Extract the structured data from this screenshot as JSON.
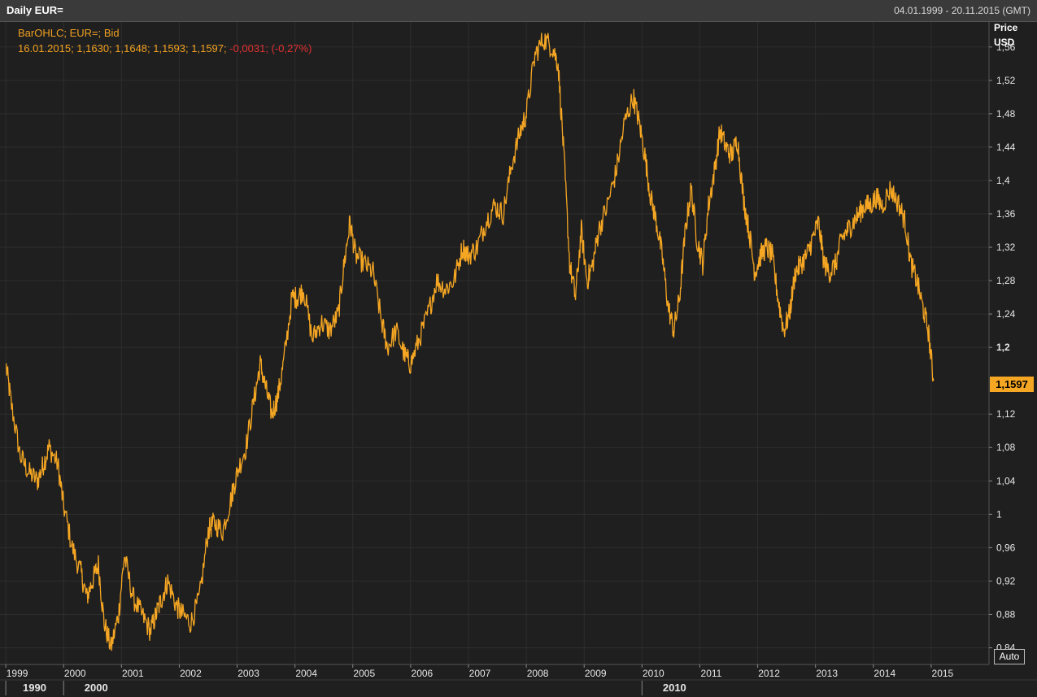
{
  "window": {
    "title": "Daily EUR=",
    "date_range": "04.01.1999 - 20.11.2015 (GMT)"
  },
  "info": {
    "line1": "BarOHLC; EUR=; Bid",
    "line2_prefix": "16.01.2015; 1,1630; 1,1648; 1,1593; 1,1597;",
    "change": "-0,0031;",
    "change_pct": "(-0,27%)"
  },
  "axis": {
    "price_label": "Price",
    "unit_label": "USD",
    "auto_label": "Auto",
    "last_value": "1,1597"
  },
  "colors": {
    "line": "#f5a623",
    "negative": "#e03030",
    "background": "#1f1f1f",
    "grid": "#2e2e2e"
  },
  "chart_data": {
    "type": "line",
    "title": "Daily EUR=",
    "series_label": "BarOHLC; EUR=; Bid",
    "ylabel": "Price USD",
    "ylim": [
      0.82,
      1.59
    ],
    "xlim": [
      1998.9,
      2016.0
    ],
    "y_ticks": [
      "0,84",
      "0,88",
      "0,92",
      "0,96",
      "1",
      "1,04",
      "1,08",
      "1,12",
      "1,2",
      "1,24",
      "1,28",
      "1,32",
      "1,36",
      "1,4",
      "1,44",
      "1,48",
      "1,52",
      "1,56"
    ],
    "y_tick_values": [
      0.84,
      0.88,
      0.92,
      0.96,
      1.0,
      1.04,
      1.08,
      1.12,
      1.2,
      1.24,
      1.28,
      1.32,
      1.36,
      1.4,
      1.44,
      1.48,
      1.52,
      1.56
    ],
    "x_ticks": [
      "1999",
      "2000",
      "2001",
      "2002",
      "2003",
      "2004",
      "2005",
      "2006",
      "2007",
      "2008",
      "2009",
      "2010",
      "2011",
      "2012",
      "2013",
      "2014",
      "2015"
    ],
    "x_tick_values": [
      1999,
      2000,
      2001,
      2002,
      2003,
      2004,
      2005,
      2006,
      2007,
      2008,
      2009,
      2010,
      2011,
      2012,
      2013,
      2014,
      2015
    ],
    "decades": [
      "1990",
      "2000",
      "2010"
    ],
    "decade_values": [
      1999,
      2000,
      2010
    ],
    "grid": true,
    "last_value": 1.1597,
    "x": [
      1999.0,
      1999.1,
      1999.25,
      1999.4,
      1999.55,
      1999.65,
      1999.75,
      1999.9,
      2000.0,
      2000.15,
      2000.3,
      2000.4,
      2000.5,
      2000.6,
      2000.7,
      2000.82,
      2000.95,
      2001.05,
      2001.2,
      2001.35,
      2001.5,
      2001.6,
      2001.7,
      2001.8,
      2001.95,
      2002.05,
      2002.2,
      2002.35,
      2002.5,
      2002.6,
      2002.75,
      2002.9,
      2003.0,
      2003.15,
      2003.3,
      2003.4,
      2003.5,
      2003.6,
      2003.7,
      2003.8,
      2003.95,
      2004.05,
      2004.15,
      2004.3,
      2004.45,
      2004.6,
      2004.75,
      2004.85,
      2004.95,
      2005.05,
      2005.2,
      2005.35,
      2005.5,
      2005.6,
      2005.75,
      2005.9,
      2006.0,
      2006.15,
      2006.3,
      2006.45,
      2006.6,
      2006.75,
      2006.9,
      2007.0,
      2007.15,
      2007.3,
      2007.45,
      2007.6,
      2007.75,
      2007.9,
      2008.0,
      2008.15,
      2008.3,
      2008.45,
      2008.55,
      2008.65,
      2008.75,
      2008.85,
      2008.95,
      2009.05,
      2009.15,
      2009.25,
      2009.4,
      2009.55,
      2009.7,
      2009.85,
      2009.95,
      2010.05,
      2010.15,
      2010.25,
      2010.35,
      2010.45,
      2010.55,
      2010.65,
      2010.75,
      2010.85,
      2010.95,
      2011.05,
      2011.15,
      2011.25,
      2011.35,
      2011.45,
      2011.55,
      2011.65,
      2011.75,
      2011.85,
      2011.95,
      2012.05,
      2012.15,
      2012.25,
      2012.35,
      2012.45,
      2012.55,
      2012.65,
      2012.75,
      2012.85,
      2012.95,
      2013.05,
      2013.15,
      2013.25,
      2013.35,
      2013.45,
      2013.55,
      2013.65,
      2013.75,
      2013.85,
      2013.95,
      2014.05,
      2014.15,
      2014.3,
      2014.45,
      2014.55,
      2014.65,
      2014.75,
      2014.85,
      2014.95,
      2015.04
    ],
    "y": [
      1.18,
      1.13,
      1.07,
      1.05,
      1.04,
      1.06,
      1.08,
      1.06,
      1.01,
      0.96,
      0.93,
      0.9,
      0.92,
      0.94,
      0.87,
      0.84,
      0.88,
      0.95,
      0.9,
      0.88,
      0.86,
      0.88,
      0.9,
      0.92,
      0.89,
      0.88,
      0.87,
      0.9,
      0.98,
      0.99,
      0.98,
      1.02,
      1.05,
      1.08,
      1.14,
      1.18,
      1.15,
      1.12,
      1.14,
      1.18,
      1.26,
      1.26,
      1.27,
      1.21,
      1.23,
      1.22,
      1.24,
      1.3,
      1.35,
      1.31,
      1.3,
      1.29,
      1.23,
      1.2,
      1.22,
      1.19,
      1.18,
      1.21,
      1.24,
      1.28,
      1.27,
      1.28,
      1.32,
      1.31,
      1.32,
      1.35,
      1.37,
      1.36,
      1.42,
      1.46,
      1.48,
      1.55,
      1.57,
      1.56,
      1.54,
      1.43,
      1.3,
      1.26,
      1.34,
      1.28,
      1.3,
      1.34,
      1.37,
      1.41,
      1.47,
      1.5,
      1.47,
      1.43,
      1.38,
      1.35,
      1.31,
      1.25,
      1.22,
      1.26,
      1.34,
      1.39,
      1.33,
      1.3,
      1.37,
      1.41,
      1.46,
      1.44,
      1.43,
      1.45,
      1.38,
      1.34,
      1.29,
      1.31,
      1.32,
      1.31,
      1.26,
      1.22,
      1.24,
      1.29,
      1.3,
      1.31,
      1.33,
      1.35,
      1.3,
      1.29,
      1.3,
      1.33,
      1.34,
      1.35,
      1.36,
      1.37,
      1.37,
      1.38,
      1.37,
      1.39,
      1.37,
      1.35,
      1.3,
      1.28,
      1.25,
      1.22,
      1.1597
    ]
  }
}
